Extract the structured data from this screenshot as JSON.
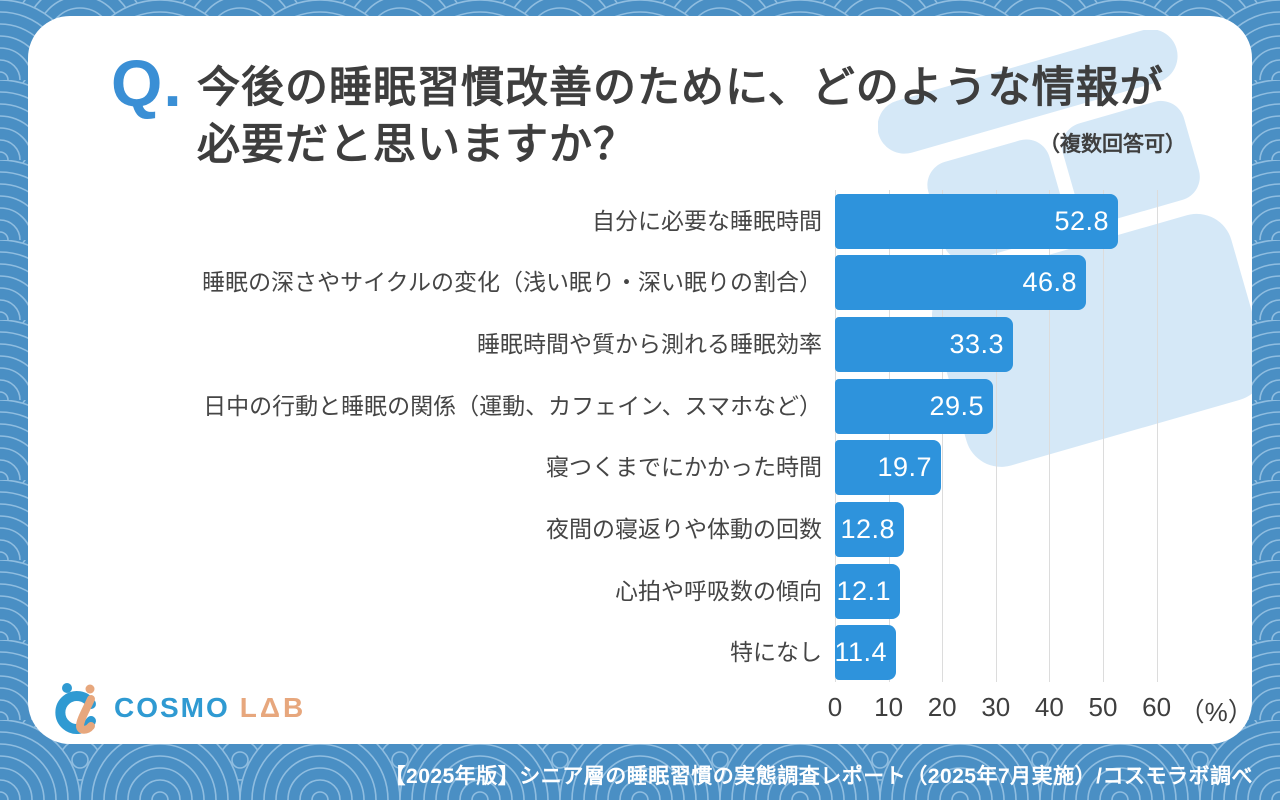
{
  "header": {
    "q_mark": "Q.",
    "title_line1": "今後の睡眠習慣改善のために、どのような情報が",
    "title_line2": "必要だと思いますか？",
    "note": "（複数回答可）"
  },
  "chart_data": {
    "type": "bar",
    "orientation": "horizontal",
    "categories": [
      "自分に必要な睡眠時間",
      "睡眠の深さやサイクルの変化（浅い眠り・深い眠りの割合）",
      "睡眠時間や質から測れる睡眠効率",
      "日中の行動と睡眠の関係（運動、カフェイン、スマホなど）",
      "寝つくまでにかかった時間",
      "夜間の寝返りや体動の回数",
      "心拍や呼吸数の傾向",
      "特になし"
    ],
    "values": [
      52.8,
      46.8,
      33.3,
      29.5,
      19.7,
      12.8,
      12.1,
      11.4
    ],
    "x_ticks": [
      "0",
      "10",
      "20",
      "30",
      "40",
      "50",
      "60"
    ],
    "x_unit_label": "（%）",
    "xlim": [
      0,
      60
    ],
    "grid": true,
    "bar_color": "#2e93dc",
    "value_label_color": "#ffffff"
  },
  "logo": {
    "brand": "COSMO",
    "suffix": "LΔB"
  },
  "footer": {
    "caption": "【2025年版】シニア層の睡眠習慣の実態調査レポート（2025年7月実施）/コスモラボ調べ"
  },
  "colors": {
    "background_blue": "#4a8fc4",
    "wave_line": "#8fbde0",
    "card": "#ffffff",
    "q_blue": "#3a8fd5",
    "title_text": "#3e3e3e",
    "watermark_blue": "#d5e8f7",
    "brand_blue": "#2f9ad2",
    "brand_orange": "#e7a77d",
    "gridline": "#dcdcdc"
  }
}
